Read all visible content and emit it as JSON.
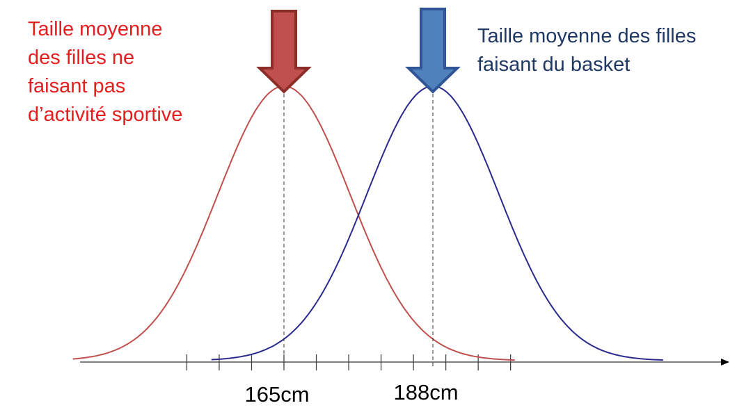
{
  "chart_data": {
    "type": "line",
    "title": "",
    "xlabel": "",
    "ylabel": "",
    "grid": false,
    "legend": "none",
    "series": [
      {
        "mean": 165,
        "color": "#c0504d",
        "annotation": "Taille moyenne\ndes filles ne\nfaisant pas\nd’activité sportive",
        "annotation_color": "#e31e1e",
        "arrow_color": "#c0504d"
      },
      {
        "mean": 188,
        "color": "#2a2a8c",
        "annotation": "Taille moyenne des filles\nfaisant du basket",
        "annotation_color": "#1f3864",
        "arrow_color": "#4f81bd"
      }
    ],
    "tick_labels": [
      {
        "value": 165,
        "label": "165cm"
      },
      {
        "value": 188,
        "label": "188cm"
      }
    ]
  }
}
